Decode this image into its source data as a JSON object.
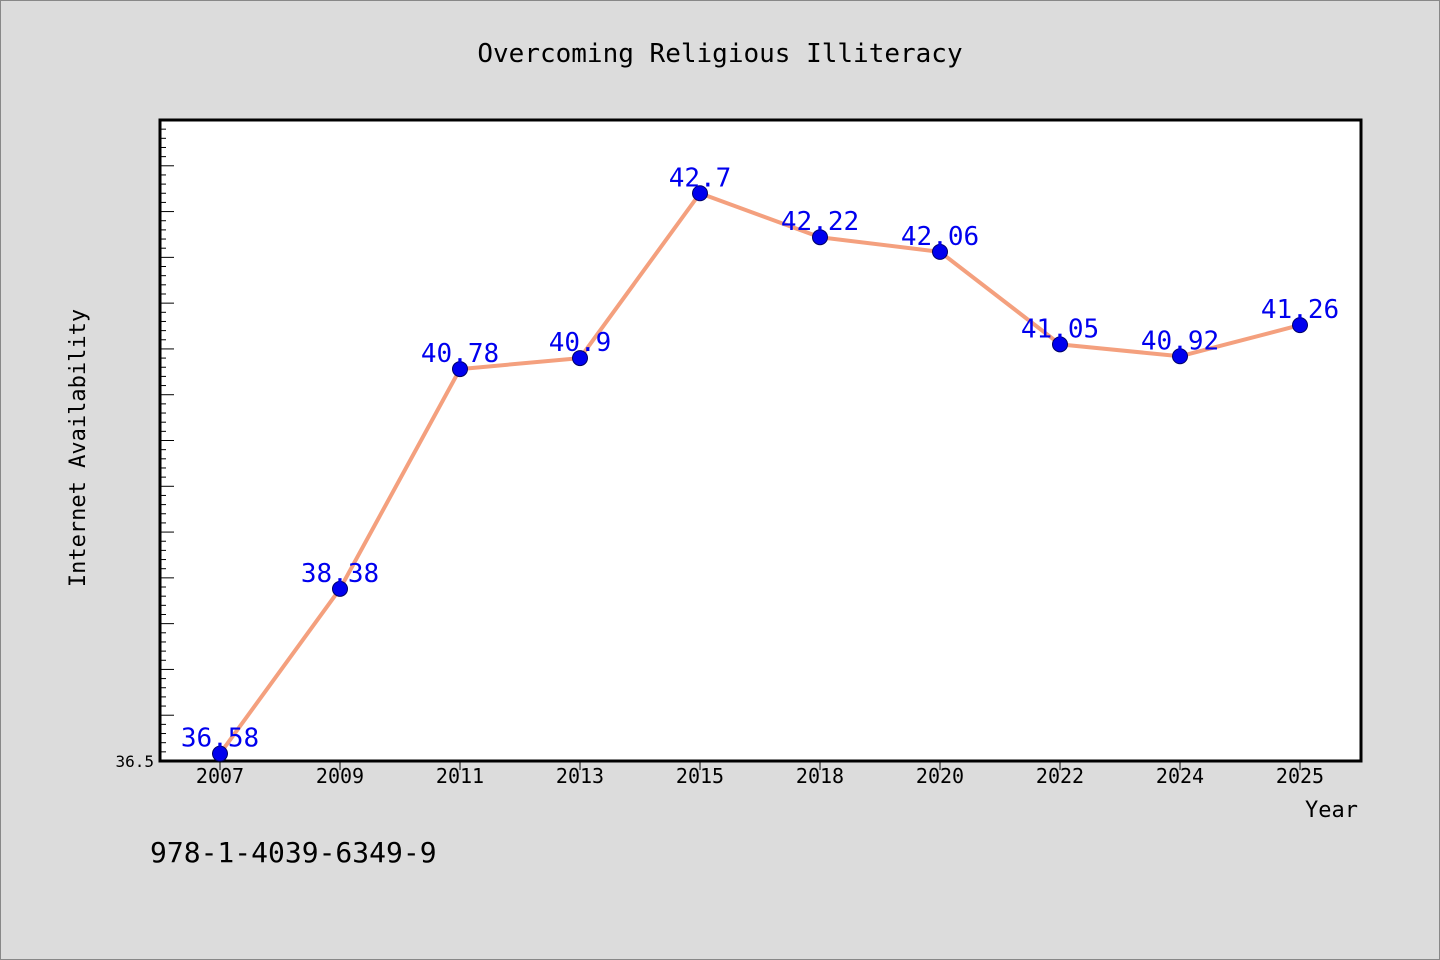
{
  "chart_data": {
    "type": "line",
    "title": "Overcoming Religious Illiteracy",
    "xlabel": "Year",
    "ylabel": "Internet Availability",
    "categories": [
      "2007",
      "2009",
      "2011",
      "2013",
      "2015",
      "2018",
      "2020",
      "2022",
      "2024",
      "2025"
    ],
    "series": [
      {
        "values": [
          36.58,
          38.38,
          40.78,
          40.9,
          42.7,
          42.22,
          42.06,
          41.05,
          40.92,
          41.26
        ],
        "labels": [
          "36.58",
          "38.38",
          "40.78",
          "40.9",
          "42.7",
          "42.22",
          "42.06",
          "41.05",
          "40.92",
          "41.26"
        ]
      }
    ],
    "ylim": [
      36.5,
      43.5
    ],
    "yticks_labeled": [
      "36.5"
    ],
    "grid": false,
    "legend": "none"
  },
  "footer": {
    "code": "978-1-4039-6349-9"
  },
  "colors": {
    "background": "#dcdcdc",
    "plot_background": "#ffffff",
    "line": "#f4a07e",
    "marker": "#0000ee",
    "data_label": "#0000ee"
  }
}
